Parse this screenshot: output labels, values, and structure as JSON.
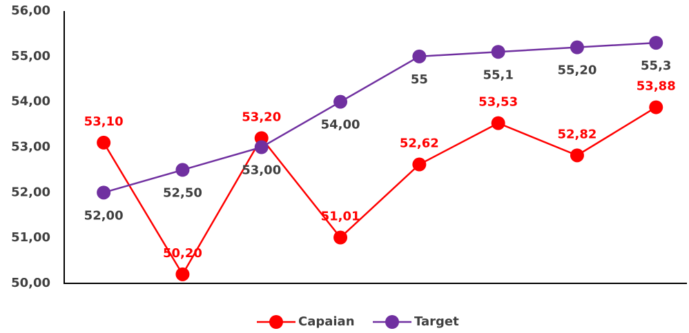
{
  "chart_data": {
    "type": "line",
    "categories": [
      null,
      null,
      null,
      null,
      null,
      null,
      null,
      null
    ],
    "series": [
      {
        "name": "Capaian",
        "color": "#ff0000",
        "values": [
          53.1,
          50.2,
          53.2,
          51.01,
          52.62,
          53.53,
          52.82,
          53.88
        ],
        "value_labels": [
          "53,10",
          "50,20",
          "53,20",
          "51,01",
          "52,62",
          "53,53",
          "52,82",
          "53,88"
        ]
      },
      {
        "name": "Target",
        "color": "#7030a0",
        "values": [
          52.0,
          52.5,
          53.0,
          54.0,
          55,
          55.1,
          55.2,
          55.3
        ],
        "value_labels": [
          "52,00",
          "52,50",
          "53,00",
          "54,00",
          "55",
          "55,1",
          "55,20",
          "55,3"
        ]
      }
    ],
    "ylim": [
      50,
      56
    ],
    "yticks": [
      {
        "value": 50,
        "label": "50,00"
      },
      {
        "value": 51,
        "label": "51,00"
      },
      {
        "value": 52,
        "label": "52,00"
      },
      {
        "value": 53,
        "label": "53,00"
      },
      {
        "value": 54,
        "label": "54,00"
      },
      {
        "value": 55,
        "label": "55,00"
      },
      {
        "value": 56,
        "label": "56,00"
      }
    ],
    "grid": false,
    "legend": "bottom"
  }
}
